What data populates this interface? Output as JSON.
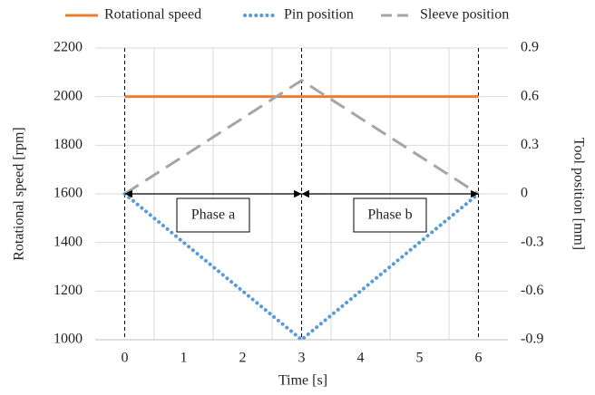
{
  "chart_data": {
    "type": "line",
    "x_axis_label": "Time [s]",
    "y_axis_label": "Rotational speed [rpm]",
    "y2_axis_label": "Tool position [mm]",
    "xlim": [
      -0.5,
      6.5
    ],
    "xticks": [
      0,
      1,
      2,
      3,
      4,
      5,
      6
    ],
    "ylim": [
      1000,
      2200
    ],
    "yticks": [
      1000,
      1200,
      1400,
      1600,
      1800,
      2000,
      2200
    ],
    "y2lim": [
      -0.9,
      0.9
    ],
    "y2ticks": [
      -0.9,
      -0.6,
      -0.3,
      0,
      0.3,
      0.6,
      0.9
    ],
    "x_gridlines": [
      0.5,
      1.5,
      2.5,
      3.5,
      4.5,
      5.5
    ],
    "vlines": [
      0,
      3,
      6
    ],
    "phases": [
      {
        "label": "Phase a",
        "x": [
          0,
          3
        ],
        "y2": 0
      },
      {
        "label": "Phase b",
        "x": [
          3,
          6
        ],
        "y2": 0
      }
    ],
    "legend": "top",
    "series": [
      {
        "name": "Rotational speed",
        "color": "#ED7D31",
        "style": "solid",
        "x": [
          0,
          6
        ],
        "values": [
          2000,
          2000
        ]
      },
      {
        "name": "Pin position",
        "color": "#5B9BD5",
        "style": "dotted",
        "axis": "y2",
        "x": [
          0,
          3,
          6
        ],
        "values": [
          0,
          -0.9,
          0
        ]
      },
      {
        "name": "Sleeve position",
        "color": "#A5A5A5",
        "style": "dashed",
        "axis": "y2",
        "x": [
          0,
          3,
          6
        ],
        "values": [
          0,
          0.7,
          0
        ]
      }
    ]
  }
}
